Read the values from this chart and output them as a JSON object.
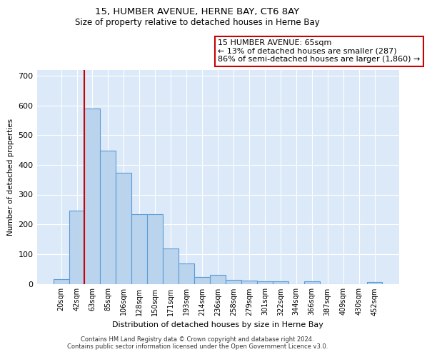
{
  "title1": "15, HUMBER AVENUE, HERNE BAY, CT6 8AY",
  "title2": "Size of property relative to detached houses in Herne Bay",
  "xlabel": "Distribution of detached houses by size in Herne Bay",
  "ylabel": "Number of detached properties",
  "categories": [
    "20sqm",
    "42sqm",
    "63sqm",
    "85sqm",
    "106sqm",
    "128sqm",
    "150sqm",
    "171sqm",
    "193sqm",
    "214sqm",
    "236sqm",
    "258sqm",
    "279sqm",
    "301sqm",
    "322sqm",
    "344sqm",
    "366sqm",
    "387sqm",
    "409sqm",
    "430sqm",
    "452sqm"
  ],
  "values": [
    15,
    247,
    590,
    448,
    373,
    235,
    235,
    120,
    68,
    22,
    30,
    13,
    10,
    8,
    8,
    0,
    8,
    0,
    0,
    0,
    5
  ],
  "bar_color": "#bad4ee",
  "bar_edge_color": "#5b9bd5",
  "vline_x": 1.5,
  "vline_color": "#cc0000",
  "annotation_text": "15 HUMBER AVENUE: 65sqm\n← 13% of detached houses are smaller (287)\n86% of semi-detached houses are larger (1,860) →",
  "annotation_box_color": "#ffffff",
  "annotation_box_edge_color": "#cc0000",
  "ylim": [
    0,
    720
  ],
  "yticks": [
    0,
    100,
    200,
    300,
    400,
    500,
    600,
    700
  ],
  "bg_color": "#dce9f8",
  "footer_line1": "Contains HM Land Registry data © Crown copyright and database right 2024.",
  "footer_line2": "Contains public sector information licensed under the Open Government Licence v3.0."
}
